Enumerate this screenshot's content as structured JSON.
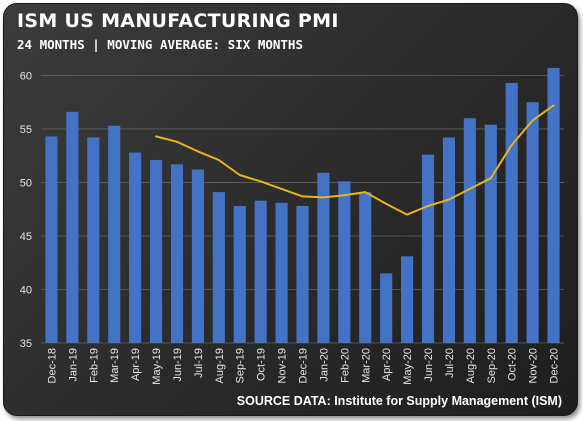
{
  "colors": {
    "background": "#2e2e2e",
    "bar": "#4472c4",
    "line": "#e8b321",
    "gridline": "#606060",
    "text": "#ffffff"
  },
  "chart_data": {
    "type": "bar",
    "title": "ISM US MANUFACTURING PMI",
    "subtitle": "24 MONTHS | MOVING AVERAGE: SIX MONTHS",
    "xlabel": "",
    "ylabel": "",
    "ylim": [
      35,
      62
    ],
    "yticks": [
      35,
      40,
      45,
      50,
      55,
      60
    ],
    "grid": true,
    "categories": [
      "Dec-18",
      "Jan-19",
      "Feb-19",
      "Mar-19",
      "Apr-19",
      "May-19",
      "Jun-19",
      "Jul-19",
      "Aug-19",
      "Sep-19",
      "Oct-19",
      "Nov-19",
      "Dec-19",
      "Jan-20",
      "Feb-20",
      "Mar-20",
      "Apr-20",
      "May-20",
      "Jun-20",
      "Jul-20",
      "Aug-20",
      "Sep-20",
      "Oct-20",
      "Nov-20",
      "Dec-20"
    ],
    "series": [
      {
        "type": "bar",
        "values": [
          54.3,
          56.6,
          54.2,
          55.3,
          52.8,
          52.1,
          51.7,
          51.2,
          49.1,
          47.8,
          48.3,
          48.1,
          47.8,
          50.9,
          50.1,
          49.1,
          41.5,
          43.1,
          52.6,
          54.2,
          56.0,
          55.4,
          59.3,
          57.5,
          60.7
        ]
      },
      {
        "type": "line",
        "values": [
          null,
          null,
          null,
          null,
          null,
          54.3,
          53.8,
          52.9,
          52.1,
          50.7,
          50.1,
          49.4,
          48.7,
          48.6,
          48.8,
          49.1,
          48.0,
          47.0,
          47.8,
          48.4,
          49.4,
          50.4,
          53.5,
          55.8,
          57.2
        ]
      }
    ],
    "source": "SOURCE DATA: Institute for Supply Management (ISM)"
  }
}
